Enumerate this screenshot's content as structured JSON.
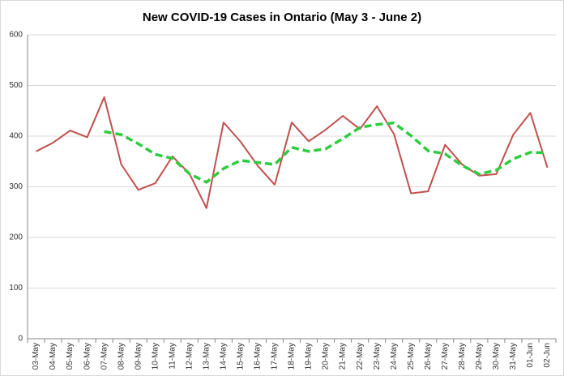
{
  "chart_data": {
    "type": "line",
    "title": "New COVID-19 Cases in Ontario (May 3 - June 2)",
    "categories": [
      "03-May",
      "04-May",
      "05-May",
      "06-May",
      "07-May",
      "08-May",
      "09-May",
      "10-May",
      "11-May",
      "12-May",
      "13-May",
      "14-May",
      "15-May",
      "16-May",
      "17-May",
      "18-May",
      "19-May",
      "20-May",
      "21-May",
      "22-May",
      "23-May",
      "24-May",
      "25-May",
      "26-May",
      "27-May",
      "28-May",
      "29-May",
      "30-May",
      "31-May",
      "01-Jun",
      "02-Jun"
    ],
    "series": [
      {
        "color": "#c0504d",
        "dashed": false,
        "values": [
          370,
          387,
          411,
          398,
          477,
          344,
          294,
          307,
          360,
          326,
          258,
          427,
          389,
          342,
          304,
          427,
          390,
          413,
          440,
          414,
          459,
          404,
          287,
          291,
          383,
          344,
          322,
          325,
          403,
          446,
          338
        ]
      },
      {
        "color": "#2ecc40",
        "dashed": true,
        "values": [
          null,
          null,
          null,
          null,
          409,
          403,
          385,
          364,
          356,
          326,
          309,
          336,
          352,
          348,
          344,
          378,
          370,
          375,
          395,
          417,
          423,
          426,
          401,
          371,
          365,
          342,
          325,
          333,
          355,
          368,
          367
        ]
      }
    ],
    "ylim": [
      0,
      600
    ],
    "yticks": [
      0,
      100,
      200,
      300,
      400,
      500,
      600
    ],
    "grid": true
  }
}
